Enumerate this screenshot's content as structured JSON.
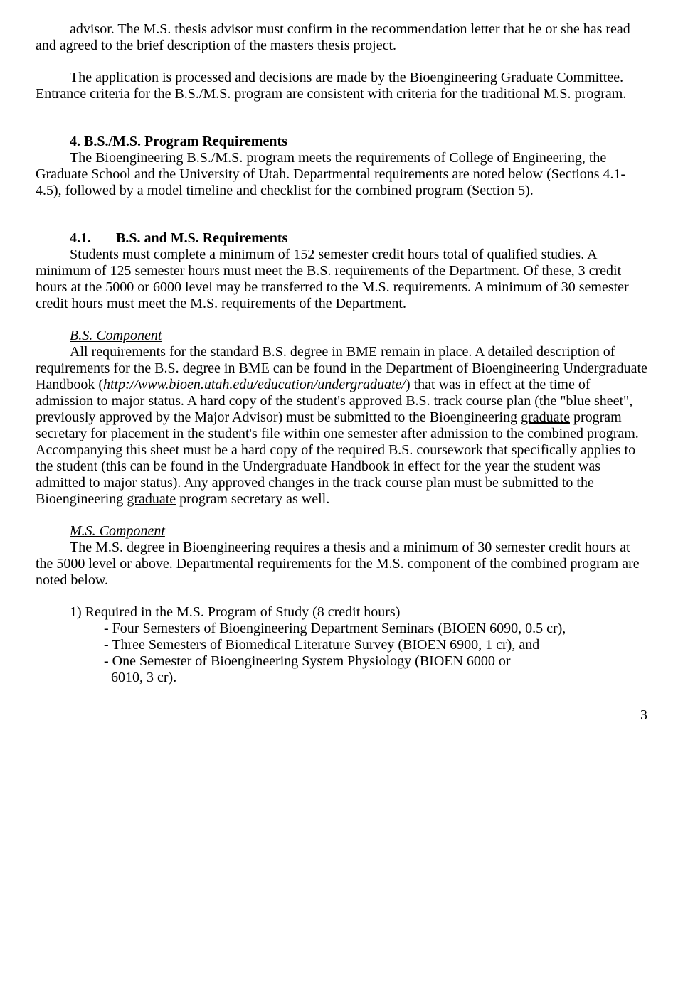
{
  "p1": {
    "line1_indent": "advisor.  The M.S. thesis advisor must confirm in the recommendation letter that he or",
    "line2": "she has read and agreed to the brief description of the masters thesis project."
  },
  "p2": {
    "line1_indent": "The application is processed and decisions are made by the Bioengineering Graduate",
    "line2": "Committee.  Entrance criteria for the B.S./M.S. program are consistent with criteria for the traditional M.S. program."
  },
  "sec4": {
    "num": "4.",
    "title": "B.S./M.S. Program Requirements",
    "body_indent": "The Bioengineering B.S./M.S. program meets the requirements of College of",
    "body_rest": "Engineering, the Graduate School and the University of Utah.  Departmental requirements are noted below (Sections 4.1-4.5), followed by a model timeline and checklist for the combined program (Section 5)."
  },
  "sec41": {
    "num": "4.1.",
    "title": "B.S. and M.S. Requirements",
    "body_indent": "Students must complete a minimum of 152 semester credit hours total of qualified",
    "body_rest": "studies.   A minimum of 125 semester hours must meet the B.S. requirements of the Department.  Of these, 3 credit hours at the 5000 or 6000 level may be transferred to the M.S. requirements.  A minimum of 30 semester credit hours must meet the M.S. requirements of the Department."
  },
  "bs": {
    "title": "B.S. Component",
    "body_indent": "All requirements for the standard B.S. degree in BME remain in place.  A detailed",
    "body_mid1": "description of requirements for the B.S. degree in BME can be found in the Department of Bioengineering Undergraduate Handbook (",
    "url": "http://www.bioen.utah.edu/education/undergraduate/",
    "body_mid2a": ") that was in effect at the time of admission to major status.  A hard copy of the student's approved B.S. track course plan (the \"blue sheet\", previously approved by the Major Advisor) must be submitted to the Bioengineering ",
    "grad1": "graduate",
    "body_mid2b": " program secretary for placement in the student's file within one semester after admission to the combined program.  Accompanying this sheet must be a hard copy of the required B.S. coursework that specifically applies to the student (this can be found in the Undergraduate Handbook in effect for the year the student was admitted to major status).  Any approved changes in the track course plan must be submitted to the Bioengineering ",
    "grad2": "graduate",
    "body_end": " program secretary as well."
  },
  "ms": {
    "title": "M.S. Component",
    "body_indent": "The M.S. degree in Bioengineering requires a thesis and a minimum of 30 semester credit",
    "body_rest": "hours at the 5000 level or above. Departmental requirements for the M.S. component of the combined program are noted below."
  },
  "req": {
    "heading": "1) Required in the M.S. Program of Study (8 credit hours)",
    "item1": "- Four Semesters of Bioengineering Department Seminars (BIOEN 6090, 0.5 cr),",
    "item2": "- Three Semesters of Biomedical Literature Survey (BIOEN 6900, 1 cr), and",
    "item3": "- One Semester of Bioengineering System Physiology (BIOEN 6000 or",
    "item3b": "  6010, 3 cr)."
  },
  "page_number": "3"
}
